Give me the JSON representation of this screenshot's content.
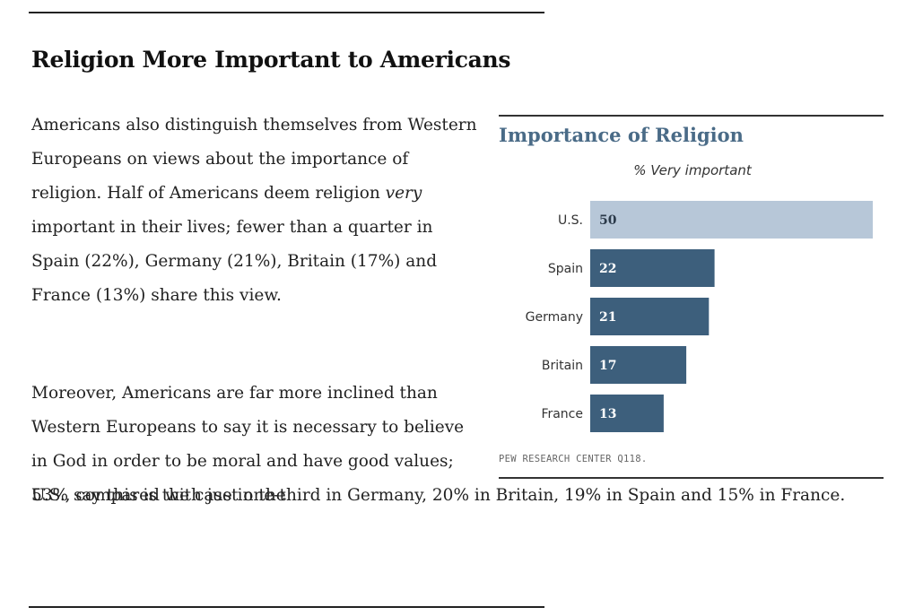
{
  "article": {
    "headline": "Religion More Important to Americans",
    "para1_a": "Americans also distinguish themselves from Western Europeans on views about the importance of religion. Half of Americans deem religion ",
    "para1_em": "very",
    "para1_b": " important in their lives; fewer than a quarter in Spain (22%), Germany (21%), Britain (17%) and France (13%) share this view.",
    "para2": "Moreover, Americans are far more inclined than Western Europeans to say it is necessary to believe in God in order to be moral and have good values; 53% say this is the case in the",
    "para2_cont": "U.S., compared with just one-third in Germany, 20% in Britain, 19% in Spain and 15% in France."
  },
  "chart_data": {
    "type": "bar",
    "orientation": "horizontal",
    "title": "Importance of Religion",
    "subtitle": "% Very important",
    "categories": [
      "U.S.",
      "Spain",
      "Germany",
      "Britain",
      "France"
    ],
    "values": [
      50,
      22,
      21,
      17,
      13
    ],
    "xlim": [
      0,
      50
    ],
    "source": "PEW RESEARCH CENTER Q118.",
    "colors": {
      "highlight": "#b7c7d8",
      "highlight_label": "#2b3a4a",
      "default": "#3d5f7c",
      "default_label": "#ffffff"
    },
    "grid": false,
    "legend": "none"
  }
}
